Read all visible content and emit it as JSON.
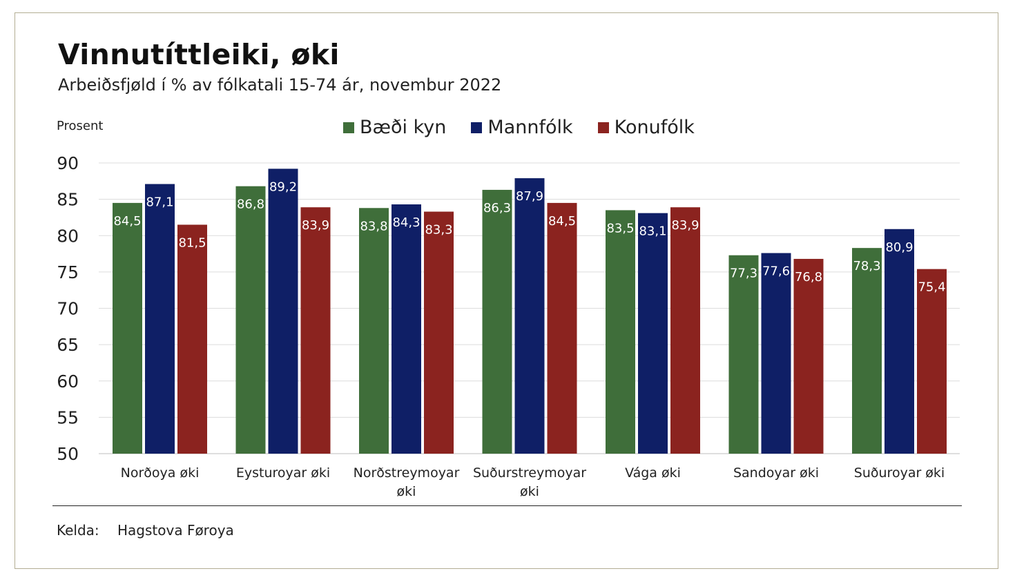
{
  "title": "Vinnutíttleiki, øki",
  "subtitle": "Arbeiðsfjøld í % av fólkatali 15-74 ár, novembur 2022",
  "source": {
    "label": "Kelda:",
    "value": "Hagstova Føroya"
  },
  "chart_data": {
    "type": "bar",
    "title": "Vinnutíttleiki, øki",
    "subtitle": "Arbeiðsfjøld í % av fólkatali 15-74 ár, novembur 2022",
    "ylabel": "Prosent",
    "xlabel": "",
    "ylim": [
      50,
      90
    ],
    "yticks": [
      90,
      85,
      80,
      75,
      70,
      65,
      60,
      55,
      50
    ],
    "grid": true,
    "legend_position": "top",
    "categories": [
      [
        "Norðoya øki"
      ],
      [
        "Eysturoyar øki"
      ],
      [
        "Norðstreymoyar",
        "øki"
      ],
      [
        "Suðurstreymoyar",
        "øki"
      ],
      [
        "Vága øki"
      ],
      [
        "Sandoyar øki"
      ],
      [
        "Suðuroyar øki"
      ]
    ],
    "series": [
      {
        "name": "Bæði kyn",
        "color": "#3f6e3a",
        "values": [
          84.5,
          86.8,
          83.8,
          86.3,
          83.5,
          77.3,
          78.3
        ],
        "labels": [
          "84,5",
          "86,8",
          "83,8",
          "86,3",
          "83,5",
          "77,3",
          "78,3"
        ]
      },
      {
        "name": "Mannfólk",
        "color": "#0f1f66",
        "values": [
          87.1,
          89.2,
          84.3,
          87.9,
          83.1,
          77.6,
          80.9
        ],
        "labels": [
          "87,1",
          "89,2",
          "84,3",
          "87,9",
          "83,1",
          "77,6",
          "80,9"
        ]
      },
      {
        "name": "Konufólk",
        "color": "#8b231f",
        "values": [
          81.5,
          83.9,
          83.3,
          84.5,
          83.9,
          76.8,
          75.4
        ],
        "labels": [
          "81,5",
          "83,9",
          "83,3",
          "84,5",
          "83,9",
          "76,8",
          "75,4"
        ]
      }
    ]
  }
}
